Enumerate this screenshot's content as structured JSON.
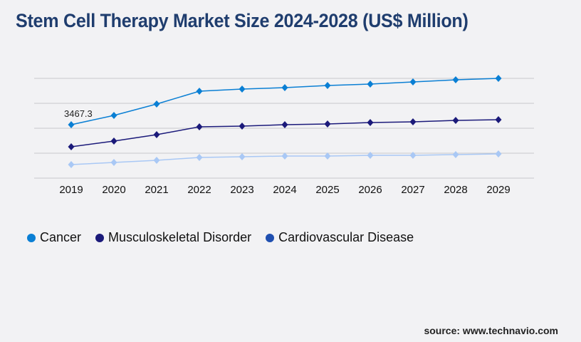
{
  "title": "Stem Cell Therapy Market Size 2024-2028 (US$ Million)",
  "source": "source: www.technavio.com",
  "chart_data": {
    "type": "line",
    "title": "Stem Cell Therapy Market Size 2024-2028 (US$ Million)",
    "x": [
      "2019",
      "2020",
      "2021",
      "2022",
      "2023",
      "2024",
      "2025",
      "2026",
      "2027",
      "2028",
      "2029"
    ],
    "ylim": [
      0,
      6472
    ],
    "grid": true,
    "legend": "bottom-left",
    "series": [
      {
        "name": "Cancer",
        "color": "#0a7fd4",
        "legend_color": "#0a7fd4",
        "values": [
          3467.3,
          4068,
          4808,
          5640,
          5779,
          5871,
          6010,
          6102,
          6241,
          6380,
          6472
        ]
      },
      {
        "name": "Musculoskeletal Disorder",
        "color": "#1b1a7a",
        "legend_color": "#1b1a7a",
        "values": [
          2034,
          2404,
          2820,
          3329,
          3375,
          3467,
          3513,
          3606,
          3652,
          3745,
          3791
        ]
      },
      {
        "name": "Cardiovascular Disease",
        "color": "#a9c8f5",
        "legend_color": "#1f4fb0",
        "values": [
          878,
          1017,
          1156,
          1341,
          1387,
          1433,
          1433,
          1479,
          1479,
          1526,
          1572
        ]
      }
    ],
    "annotations": [
      {
        "series": "Cancer",
        "x": "2019",
        "text": "3467.3"
      }
    ]
  }
}
